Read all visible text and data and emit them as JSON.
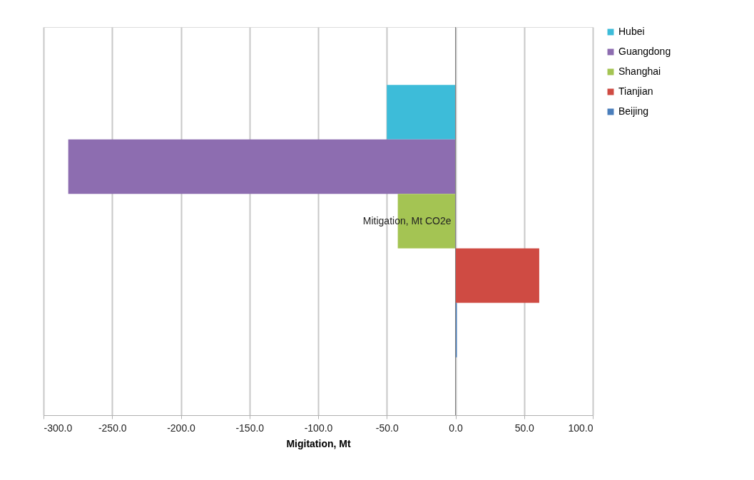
{
  "chart_data": {
    "type": "bar",
    "orientation": "horizontal",
    "categories": [
      "Mitigation, Mt CO2e"
    ],
    "xlabel": "Migitation, Mt",
    "xlim": [
      -300,
      100
    ],
    "xticks": [
      {
        "value": -300,
        "label": "-300.0"
      },
      {
        "value": -250,
        "label": "-250.0"
      },
      {
        "value": -200,
        "label": "-200.0"
      },
      {
        "value": -150,
        "label": "-150.0"
      },
      {
        "value": -100,
        "label": "-100.0"
      },
      {
        "value": -50,
        "label": "-50.0"
      },
      {
        "value": 0,
        "label": "0.0"
      },
      {
        "value": 50,
        "label": "50.0"
      },
      {
        "value": 100,
        "label": "100.0"
      }
    ],
    "grid": "x",
    "legend": "right",
    "series": [
      {
        "name": "Hubei",
        "color": "#3dbcd9",
        "values": [
          -50
        ]
      },
      {
        "name": "Guangdong",
        "color": "#8d6db0",
        "values": [
          -282
        ]
      },
      {
        "name": "Shanghai",
        "color": "#a4c453",
        "values": [
          -42
        ]
      },
      {
        "name": "Tianjian",
        "color": "#cf4b43",
        "values": [
          61
        ]
      },
      {
        "name": "Beijing",
        "color": "#4a7ebb",
        "values": [
          1
        ]
      }
    ]
  }
}
